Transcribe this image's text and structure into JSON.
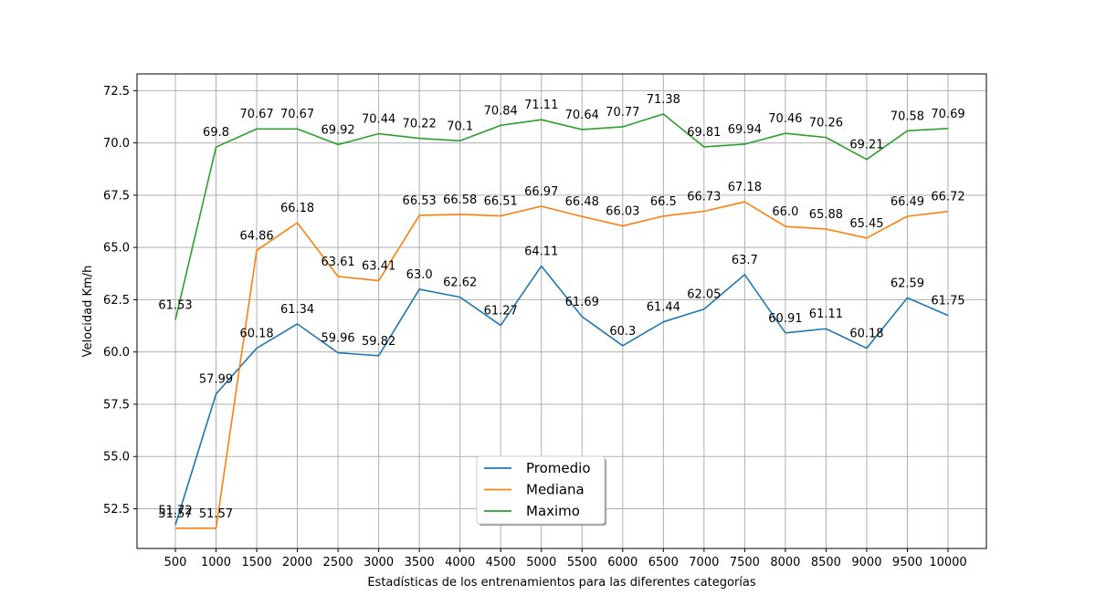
{
  "chart_data": {
    "type": "line",
    "title": "",
    "xlabel": "Estadísticas de los entrenamientos para las diferentes categorías",
    "ylabel": "Velocidad Km/h",
    "x": [
      500,
      1000,
      1500,
      2000,
      2500,
      3000,
      3500,
      4000,
      4500,
      5000,
      5500,
      6000,
      6500,
      7000,
      7500,
      8000,
      8500,
      9000,
      9500,
      10000
    ],
    "ylim": [
      50.6,
      73.3
    ],
    "yticks": [
      "52.5",
      "55.0",
      "57.5",
      "60.0",
      "62.5",
      "65.0",
      "67.5",
      "70.0",
      "72.5"
    ],
    "xticks": [
      "500",
      "1000",
      "1500",
      "2000",
      "2500",
      "3000",
      "3500",
      "4000",
      "4500",
      "5000",
      "5500",
      "6000",
      "6500",
      "7000",
      "7500",
      "8000",
      "8500",
      "9000",
      "9500",
      "10000"
    ],
    "grid": true,
    "legend_position": "bottom-center",
    "series": [
      {
        "name": "Promedio",
        "color": "#1f77b4",
        "values": [
          51.72,
          57.99,
          60.18,
          61.34,
          59.96,
          59.82,
          63.0,
          62.62,
          61.27,
          64.11,
          61.69,
          60.3,
          61.44,
          62.05,
          63.7,
          60.91,
          61.11,
          60.18,
          62.59,
          61.75
        ],
        "labels": [
          "51.72",
          "57.99",
          "60.18",
          "61.34",
          "59.96",
          "59.82",
          "63.0",
          "62.62",
          "61.27",
          "64.11",
          "61.69",
          "60.3",
          "61.44",
          "62.05",
          "63.7",
          "60.91",
          "61.11",
          "60.18",
          "62.59",
          "61.75"
        ]
      },
      {
        "name": "Mediana",
        "color": "#ff7f0e",
        "values": [
          51.57,
          51.57,
          64.86,
          66.18,
          63.61,
          63.41,
          66.53,
          66.58,
          66.51,
          66.97,
          66.48,
          66.03,
          66.5,
          66.73,
          67.18,
          66.0,
          65.88,
          65.45,
          66.49,
          66.72
        ],
        "labels": [
          "51.57",
          "51.57",
          "64.86",
          "66.18",
          "63.61",
          "63.41",
          "66.53",
          "66.58",
          "66.51",
          "66.97",
          "66.48",
          "66.03",
          "66.5",
          "66.73",
          "67.18",
          "66.0",
          "65.88",
          "65.45",
          "66.49",
          "66.72"
        ]
      },
      {
        "name": "Maximo",
        "color": "#2ca02c",
        "values": [
          61.53,
          69.8,
          70.67,
          70.67,
          69.92,
          70.44,
          70.22,
          70.1,
          70.84,
          71.11,
          70.64,
          70.77,
          71.38,
          69.81,
          69.94,
          70.46,
          70.26,
          69.21,
          70.58,
          70.69
        ],
        "labels": [
          "61.53",
          "69.8",
          "70.67",
          "70.67",
          "69.92",
          "70.44",
          "70.22",
          "70.1",
          "70.84",
          "71.11",
          "70.64",
          "70.77",
          "71.38",
          "69.81",
          "69.94",
          "70.46",
          "70.26",
          "69.21",
          "70.58",
          "70.69"
        ]
      }
    ]
  }
}
